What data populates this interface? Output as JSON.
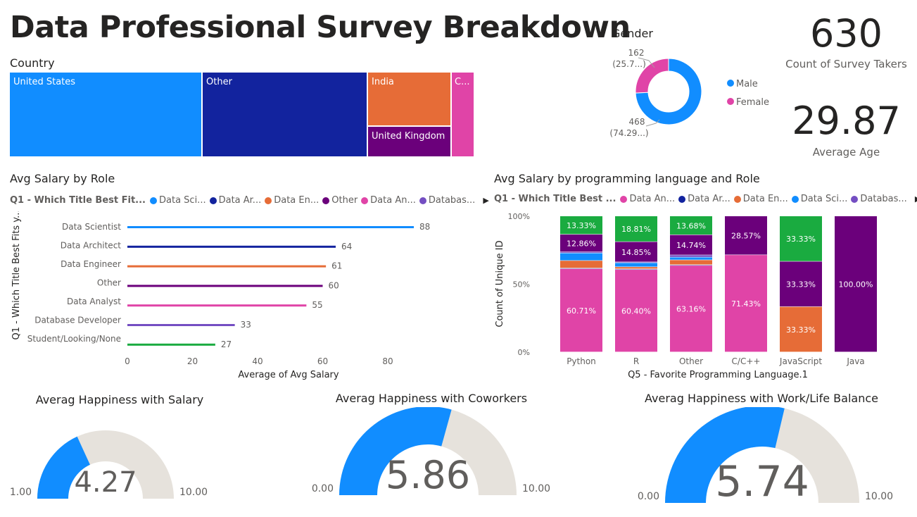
{
  "title": "Data Professional Survey Breakdown",
  "colors": {
    "blue": "#118DFF",
    "darkblue": "#12239E",
    "orange": "#E66C37",
    "purple": "#6B007B",
    "pink": "#E044A7",
    "indigo": "#744EC2",
    "green": "#1AAB40",
    "track": "#E6E2DC"
  },
  "country": {
    "title": "Country",
    "tiles": [
      {
        "label": "United States",
        "color": "#118DFF"
      },
      {
        "label": "Other",
        "color": "#12239E"
      },
      {
        "label": "India",
        "color": "#E66C37"
      },
      {
        "label": "United Kingdom",
        "color": "#6B007B"
      },
      {
        "label": "C...",
        "color": "#E044A7"
      }
    ]
  },
  "gender": {
    "title": "Gender",
    "slices": [
      {
        "name": "Male",
        "value": 468,
        "label": "468",
        "pct_label": "(74.29...)",
        "color": "#118DFF"
      },
      {
        "name": "Female",
        "value": 162,
        "label": "162",
        "pct_label": "(25.7...)",
        "color": "#E044A7"
      }
    ]
  },
  "kpis": [
    {
      "value": "630",
      "label": "Count of Survey Takers"
    },
    {
      "value": "29.87",
      "label": "Average Age"
    }
  ],
  "salary_role": {
    "title": "Avg Salary by Role",
    "legend_title": "Q1 - Which Title Best Fit...",
    "legend": [
      {
        "name": "Data Sci...",
        "color": "#118DFF"
      },
      {
        "name": "Data Ar...",
        "color": "#12239E"
      },
      {
        "name": "Data En...",
        "color": "#E66C37"
      },
      {
        "name": "Other",
        "color": "#6B007B"
      },
      {
        "name": "Data An...",
        "color": "#E044A7"
      },
      {
        "name": "Databas...",
        "color": "#744EC2"
      }
    ],
    "arrow": "▶"
  },
  "salary_lang": {
    "title": "Avg Salary by programming language and Role",
    "legend_title": "Q1 - Which Title Best ...",
    "legend": [
      {
        "name": "Data An...",
        "color": "#E044A7"
      },
      {
        "name": "Data Ar...",
        "color": "#12239E"
      },
      {
        "name": "Data En...",
        "color": "#E66C37"
      },
      {
        "name": "Data Sci...",
        "color": "#118DFF"
      },
      {
        "name": "Databas...",
        "color": "#744EC2"
      }
    ],
    "arrow": "▶"
  },
  "chart_data": [
    {
      "type": "bar",
      "orientation": "horizontal",
      "title": "Avg Salary by Role",
      "categories": [
        "Data Scientist",
        "Data Architect",
        "Data Engineer",
        "Other",
        "Data Analyst",
        "Database Developer",
        "Student/Looking/None"
      ],
      "values": [
        88,
        64,
        61,
        60,
        55,
        33,
        27
      ],
      "value_labels": [
        "88",
        "64",
        "61",
        "60",
        "55",
        "33",
        "27"
      ],
      "colors": [
        "#118DFF",
        "#12239E",
        "#E66C37",
        "#6B007B",
        "#E044A7",
        "#744EC2",
        "#1AAB40"
      ],
      "xlabel": "Average of Avg Salary",
      "ylabel": "Q1 - Which Title Best Fits y...",
      "xlim": [
        0,
        95
      ],
      "xticks": [
        0,
        20,
        40,
        60,
        80
      ],
      "xtick_labels": [
        "0",
        "20",
        "40",
        "60",
        "80"
      ],
      "grid": false
    },
    {
      "type": "bar",
      "stacked": "100%",
      "title": "Avg Salary by programming language and Role",
      "categories": [
        "Python",
        "R",
        "Other",
        "C/C++",
        "JavaScript",
        "Java"
      ],
      "xlabel": "Q5 - Favorite Programming Language.1",
      "ylabel": "Count of Unique ID",
      "yticks": [
        0,
        50,
        100
      ],
      "ytick_labels": [
        "0%",
        "50%",
        "100%"
      ],
      "series": [
        {
          "name": "Data Analyst",
          "color": "#E044A7",
          "values": [
            60.71,
            60.4,
            63.16,
            71.43,
            0,
            0
          ],
          "labels": [
            "60.71%",
            "60.40%",
            "63.16%",
            "71.43%",
            "",
            ""
          ]
        },
        {
          "name": "Data Architect",
          "color": "#12239E",
          "values": [
            0.5,
            0.5,
            0.5,
            0,
            0,
            0
          ],
          "labels": [
            "",
            "",
            "",
            "",
            "",
            ""
          ]
        },
        {
          "name": "Data Engineer",
          "color": "#E66C37",
          "values": [
            5.5,
            1.5,
            3.5,
            0,
            33.33,
            0
          ],
          "labels": [
            "",
            "",
            "",
            "",
            "33.33%",
            ""
          ]
        },
        {
          "name": "Data Scientist",
          "color": "#118DFF",
          "values": [
            5.5,
            3.0,
            2.0,
            0,
            0,
            0
          ],
          "labels": [
            "",
            "",
            "",
            "",
            "",
            ""
          ]
        },
        {
          "name": "Database Developer",
          "color": "#744EC2",
          "values": [
            0.8,
            0.6,
            1.6,
            0,
            0,
            0
          ],
          "labels": [
            "",
            "",
            "",
            "",
            "",
            ""
          ]
        },
        {
          "name": "Other",
          "color": "#6B007B",
          "values": [
            12.86,
            14.85,
            14.74,
            28.57,
            33.33,
            100.0
          ],
          "labels": [
            "12.86%",
            "14.85%",
            "14.74%",
            "28.57%",
            "33.33%",
            "100.00%"
          ]
        },
        {
          "name": "Student/Looking/None",
          "color": "#1AAB40",
          "values": [
            13.33,
            18.81,
            13.68,
            0,
            33.33,
            0
          ],
          "labels": [
            "13.33%",
            "18.81%",
            "13.68%",
            "",
            "33.33%",
            ""
          ]
        }
      ]
    },
    {
      "type": "pie",
      "donut": true,
      "title": "Gender",
      "categories": [
        "Male",
        "Female"
      ],
      "values": [
        468,
        162
      ],
      "legend": "right"
    }
  ],
  "gauges": [
    {
      "title": "Averag Happiness with Salary",
      "value": 4.27,
      "value_label": "4.27",
      "min": 1,
      "max": 10,
      "min_label": "1.00",
      "max_label": "10.00"
    },
    {
      "title": "Averag Happiness with Coworkers",
      "value": 5.86,
      "value_label": "5.86",
      "min": 0,
      "max": 10,
      "min_label": "0.00",
      "max_label": "10.00"
    },
    {
      "title": "Averag Happiness with Work/Life Balance",
      "value": 5.74,
      "value_label": "5.74",
      "min": 0,
      "max": 10,
      "min_label": "0.00",
      "max_label": "10.00"
    }
  ]
}
